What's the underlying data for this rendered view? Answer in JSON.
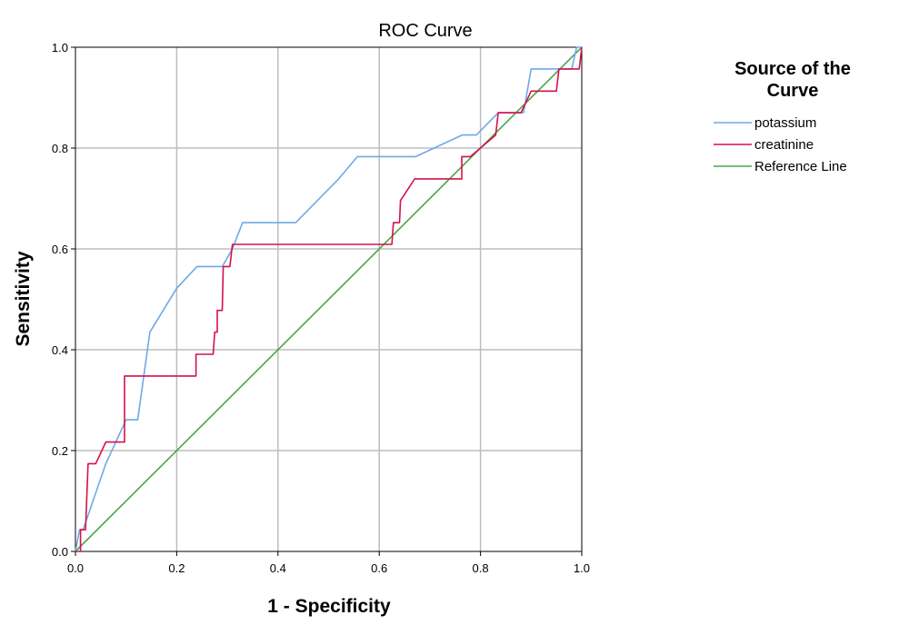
{
  "chart_data": {
    "type": "line",
    "title": "ROC Curve",
    "xlabel": "1 - Specificity",
    "ylabel": "Sensitivity",
    "xlim": [
      0,
      1
    ],
    "ylim": [
      0,
      1
    ],
    "xticks": [
      "0.0",
      "0.2",
      "0.4",
      "0.6",
      "0.8",
      "1.0"
    ],
    "yticks": [
      "0.0",
      "0.2",
      "0.4",
      "0.6",
      "0.8",
      "1.0"
    ],
    "grid": true,
    "legend": {
      "title": "Source of the Curve",
      "title_lines": [
        "Source of the",
        "Curve"
      ],
      "placement": "right"
    },
    "series": [
      {
        "name": "potassium",
        "color": "#6fa8e8",
        "points": [
          [
            0,
            0
          ],
          [
            0.008,
            0.043
          ],
          [
            0.015,
            0.043
          ],
          [
            0.06,
            0.174
          ],
          [
            0.1,
            0.261
          ],
          [
            0.115,
            0.261
          ],
          [
            0.123,
            0.261
          ],
          [
            0.147,
            0.435
          ],
          [
            0.2,
            0.522
          ],
          [
            0.24,
            0.565
          ],
          [
            0.29,
            0.565
          ],
          [
            0.31,
            0.6
          ],
          [
            0.33,
            0.652
          ],
          [
            0.435,
            0.652
          ],
          [
            0.52,
            0.739
          ],
          [
            0.557,
            0.783
          ],
          [
            0.672,
            0.783
          ],
          [
            0.764,
            0.826
          ],
          [
            0.792,
            0.826
          ],
          [
            0.835,
            0.87
          ],
          [
            0.885,
            0.87
          ],
          [
            0.9,
            0.957
          ],
          [
            0.98,
            0.957
          ],
          [
            0.99,
            1.0
          ],
          [
            1.0,
            1.0
          ]
        ]
      },
      {
        "name": "creatinine",
        "color": "#d5114a",
        "points": [
          [
            0,
            0
          ],
          [
            0.01,
            0
          ],
          [
            0.01,
            0.043
          ],
          [
            0.02,
            0.043
          ],
          [
            0.025,
            0.174
          ],
          [
            0.04,
            0.174
          ],
          [
            0.06,
            0.217
          ],
          [
            0.097,
            0.217
          ],
          [
            0.097,
            0.348
          ],
          [
            0.238,
            0.348
          ],
          [
            0.238,
            0.391
          ],
          [
            0.272,
            0.391
          ],
          [
            0.275,
            0.435
          ],
          [
            0.28,
            0.435
          ],
          [
            0.28,
            0.478
          ],
          [
            0.29,
            0.478
          ],
          [
            0.292,
            0.565
          ],
          [
            0.305,
            0.565
          ],
          [
            0.31,
            0.609
          ],
          [
            0.625,
            0.609
          ],
          [
            0.628,
            0.652
          ],
          [
            0.64,
            0.652
          ],
          [
            0.642,
            0.696
          ],
          [
            0.67,
            0.739
          ],
          [
            0.763,
            0.739
          ],
          [
            0.763,
            0.783
          ],
          [
            0.78,
            0.783
          ],
          [
            0.83,
            0.826
          ],
          [
            0.835,
            0.87
          ],
          [
            0.88,
            0.87
          ],
          [
            0.9,
            0.913
          ],
          [
            0.95,
            0.913
          ],
          [
            0.955,
            0.957
          ],
          [
            0.995,
            0.957
          ],
          [
            1.0,
            1.0
          ]
        ]
      },
      {
        "name": "Reference Line",
        "color": "#4aa34e",
        "points": [
          [
            0,
            0
          ],
          [
            1,
            1
          ]
        ]
      }
    ]
  }
}
